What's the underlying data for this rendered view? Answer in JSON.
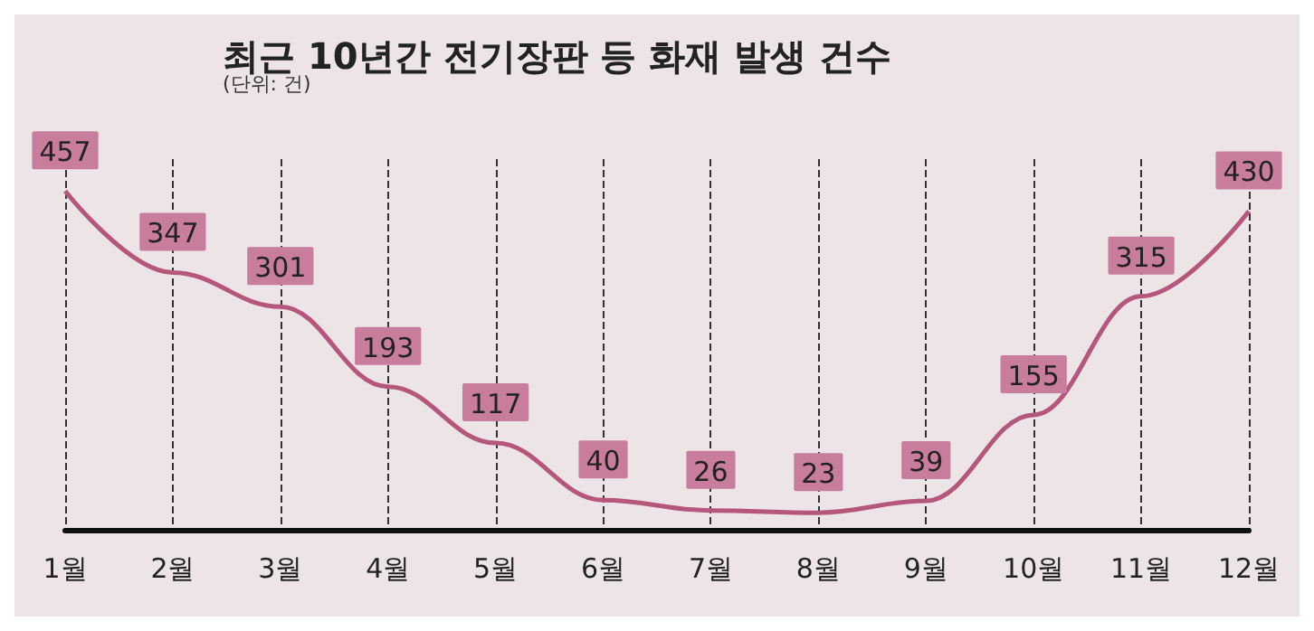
{
  "chart_data": {
    "type": "line",
    "title": "최근 10년간 전기장판 등 화재 발생 건수",
    "subtitle": "(단위: 건)",
    "categories": [
      "1월",
      "2월",
      "3월",
      "4월",
      "5월",
      "6월",
      "7월",
      "8월",
      "9월",
      "10월",
      "11월",
      "12월"
    ],
    "values": [
      457,
      347,
      301,
      193,
      117,
      40,
      26,
      23,
      39,
      155,
      315,
      430
    ],
    "color": "#b5577a",
    "data_labels": true,
    "grid": "x"
  }
}
